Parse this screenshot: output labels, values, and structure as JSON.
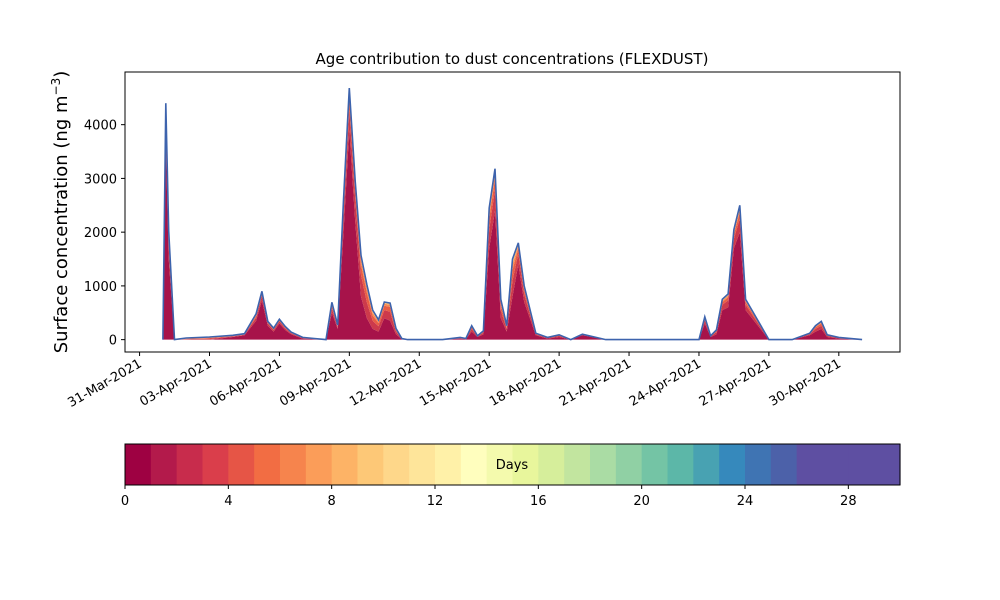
{
  "chart_data": {
    "type": "area",
    "stacked": true,
    "title": "Age contribution to dust concentrations (FLEXDUST)",
    "xlabel": "",
    "ylabel": "Surface concentration (ng m",
    "ylabel_superscript": "−3",
    "ylabel_suffix": ")",
    "ylim": [
      -230,
      4980
    ],
    "yticks": [
      0,
      1000,
      2000,
      3000,
      4000
    ],
    "ytick_labels": [
      "0",
      "1000",
      "2000",
      "3000",
      "4000"
    ],
    "xlim": [
      "2021-03-30T09:00",
      "2021-05-02T15:00"
    ],
    "xtick_dates": [
      "2021-03-31",
      "2021-04-03",
      "2021-04-06",
      "2021-04-09",
      "2021-04-12",
      "2021-04-15",
      "2021-04-18",
      "2021-04-21",
      "2021-04-24",
      "2021-04-27",
      "2021-04-30"
    ],
    "xtick_labels": [
      "31-Mar-2021",
      "03-Apr-2021",
      "06-Apr-2021",
      "09-Apr-2021",
      "12-Apr-2021",
      "15-Apr-2021",
      "18-Apr-2021",
      "21-Apr-2021",
      "24-Apr-2021",
      "27-Apr-2021",
      "30-Apr-2021"
    ],
    "grid": false,
    "x": [
      "2021-04-01T00:00",
      "2021-04-01T03:00",
      "2021-04-01T06:00",
      "2021-04-01T12:00",
      "2021-04-02T00:00",
      "2021-04-03T00:00",
      "2021-04-04T00:00",
      "2021-04-04T12:00",
      "2021-04-05T00:00",
      "2021-04-05T06:00",
      "2021-04-05T12:00",
      "2021-04-05T18:00",
      "2021-04-06T00:00",
      "2021-04-06T06:00",
      "2021-04-06T12:00",
      "2021-04-07T00:00",
      "2021-04-07T12:00",
      "2021-04-08T00:00",
      "2021-04-08T06:00",
      "2021-04-08T12:00",
      "2021-04-08T18:00",
      "2021-04-09T00:00",
      "2021-04-09T06:00",
      "2021-04-09T12:00",
      "2021-04-09T18:00",
      "2021-04-10T00:00",
      "2021-04-10T06:00",
      "2021-04-10T12:00",
      "2021-04-10T18:00",
      "2021-04-11T00:00",
      "2021-04-11T06:00",
      "2021-04-11T12:00",
      "2021-04-12T00:00",
      "2021-04-13T00:00",
      "2021-04-13T18:00",
      "2021-04-14T00:00",
      "2021-04-14T06:00",
      "2021-04-14T12:00",
      "2021-04-14T18:00",
      "2021-04-15T00:00",
      "2021-04-15T06:00",
      "2021-04-15T12:00",
      "2021-04-15T18:00",
      "2021-04-16T00:00",
      "2021-04-16T06:00",
      "2021-04-16T12:00",
      "2021-04-17T00:00",
      "2021-04-17T12:00",
      "2021-04-18T00:00",
      "2021-04-18T12:00",
      "2021-04-19T00:00",
      "2021-04-20T00:00",
      "2021-04-21T00:00",
      "2021-04-22T00:00",
      "2021-04-23T00:00",
      "2021-04-24T00:00",
      "2021-04-24T06:00",
      "2021-04-24T12:00",
      "2021-04-24T18:00",
      "2021-04-25T00:00",
      "2021-04-25T06:00",
      "2021-04-25T12:00",
      "2021-04-25T18:00",
      "2021-04-26T00:00",
      "2021-04-27T00:00",
      "2021-04-28T00:00",
      "2021-04-28T18:00",
      "2021-04-29T00:00",
      "2021-04-29T06:00",
      "2021-04-29T12:00",
      "2021-04-30T00:00",
      "2021-05-01T00:00"
    ],
    "series": [
      {
        "values": [
          0,
          3650,
          1500,
          0,
          0,
          0,
          50,
          80,
          350,
          730,
          260,
          150,
          300,
          180,
          100,
          20,
          10,
          0,
          500,
          200,
          2000,
          3900,
          2200,
          800,
          400,
          200,
          150,
          400,
          350,
          100,
          10,
          0,
          0,
          0,
          20,
          10,
          150,
          50,
          100,
          1700,
          2400,
          400,
          150,
          800,
          1400,
          700,
          80,
          20,
          50,
          0,
          80,
          0,
          0,
          0,
          0,
          0,
          300,
          50,
          100,
          550,
          600,
          1700,
          2000,
          550,
          0,
          0,
          80,
          150,
          200,
          50,
          20,
          0
        ]
      },
      {
        "values": [
          0,
          330,
          200,
          0,
          10,
          20,
          10,
          10,
          60,
          90,
          40,
          30,
          40,
          30,
          20,
          10,
          5,
          0,
          80,
          30,
          300,
          380,
          420,
          400,
          300,
          150,
          100,
          150,
          170,
          50,
          5,
          0,
          0,
          0,
          10,
          5,
          50,
          10,
          30,
          350,
          400,
          150,
          50,
          300,
          200,
          150,
          20,
          10,
          20,
          0,
          10,
          0,
          0,
          0,
          0,
          0,
          60,
          10,
          40,
          100,
          130,
          180,
          250,
          100,
          0,
          0,
          20,
          50,
          60,
          20,
          10,
          0
        ]
      },
      {
        "values": [
          0,
          200,
          150,
          0,
          5,
          10,
          5,
          5,
          30,
          40,
          20,
          15,
          20,
          15,
          10,
          5,
          3,
          0,
          50,
          20,
          150,
          200,
          180,
          200,
          180,
          100,
          60,
          80,
          90,
          30,
          3,
          0,
          0,
          0,
          5,
          3,
          30,
          5,
          15,
          200,
          200,
          100,
          30,
          200,
          100,
          80,
          10,
          5,
          10,
          0,
          5,
          0,
          0,
          0,
          0,
          0,
          30,
          5,
          20,
          50,
          60,
          80,
          120,
          50,
          0,
          0,
          10,
          30,
          40,
          10,
          5,
          0
        ]
      },
      {
        "values": [
          0,
          100,
          80,
          0,
          5,
          10,
          5,
          5,
          20,
          20,
          10,
          8,
          10,
          10,
          5,
          3,
          2,
          0,
          30,
          10,
          80,
          100,
          80,
          90,
          80,
          50,
          30,
          40,
          40,
          15,
          2,
          0,
          0,
          0,
          3,
          2,
          15,
          3,
          8,
          100,
          100,
          50,
          15,
          100,
          50,
          40,
          5,
          3,
          5,
          0,
          3,
          0,
          0,
          0,
          0,
          0,
          15,
          3,
          10,
          25,
          30,
          40,
          60,
          25,
          0,
          0,
          5,
          15,
          20,
          5,
          3,
          0
        ]
      },
      {
        "values": [
          0,
          70,
          50,
          0,
          5,
          5,
          5,
          5,
          15,
          10,
          5,
          5,
          5,
          5,
          3,
          2,
          1,
          0,
          20,
          5,
          40,
          60,
          40,
          50,
          40,
          30,
          20,
          20,
          20,
          10,
          1,
          0,
          0,
          0,
          2,
          1,
          10,
          2,
          5,
          60,
          50,
          30,
          10,
          60,
          30,
          20,
          3,
          2,
          3,
          0,
          2,
          0,
          0,
          0,
          0,
          0,
          10,
          2,
          5,
          15,
          20,
          30,
          40,
          15,
          0,
          0,
          3,
          10,
          10,
          3,
          2,
          0
        ]
      },
      {
        "values": [
          0,
          50,
          40,
          0,
          5,
          5,
          5,
          5,
          5,
          10,
          5,
          5,
          5,
          5,
          2,
          2,
          1,
          0,
          15,
          5,
          30,
          40,
          30,
          30,
          30,
          20,
          10,
          10,
          10,
          5,
          1,
          0,
          0,
          0,
          2,
          1,
          5,
          2,
          5,
          40,
          30,
          20,
          5,
          40,
          20,
          10,
          2,
          2,
          2,
          0,
          2,
          0,
          0,
          0,
          0,
          0,
          10,
          2,
          5,
          10,
          10,
          20,
          30,
          10,
          0,
          0,
          2,
          5,
          10,
          2,
          2,
          0
        ]
      }
    ],
    "series_colors": [
      "#a7134a",
      "#cd3a4b",
      "#e95e45",
      "#f88c53",
      "#fdbf70",
      "#3b6cb2"
    ],
    "colorbar": {
      "label": "Days",
      "ticks": [
        0,
        4,
        8,
        12,
        16,
        20,
        24,
        28
      ],
      "min": 0,
      "max": 30,
      "colors": [
        "#9e0142",
        "#b31a4b",
        "#c82c4c",
        "#da3e4b",
        "#e65546",
        "#f26d43",
        "#f6844d",
        "#fb9d59",
        "#fdb366",
        "#fdc877",
        "#fed78a",
        "#fee59a",
        "#fff1a8",
        "#fffebe",
        "#f4faad",
        "#e8f69c",
        "#d6ee9b",
        "#c2e59f",
        "#aadca4",
        "#90d0a4",
        "#74c4a5",
        "#5cb7a8",
        "#48a2b2",
        "#3689bc",
        "#3f74b3",
        "#4c61a9",
        "#5e4fa2",
        "#5e4fa2",
        "#5e4fa2",
        "#5e4fa2"
      ]
    }
  }
}
